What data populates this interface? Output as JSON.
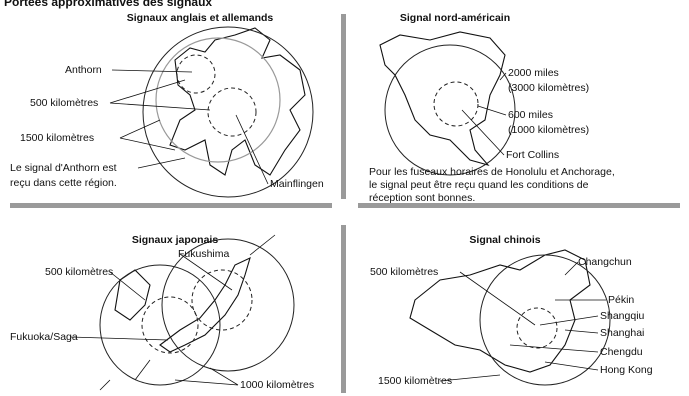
{
  "header": {
    "title": "Portées approximatives des signaux"
  },
  "panels": [
    {
      "title": "Signaux anglais et allemands",
      "labels": [
        "Anthorn",
        "500 kilomètres",
        "1500 kilomètres",
        "Le signal d'Anthorn est",
        "reçu dans cette région.",
        "Mainflingen"
      ]
    },
    {
      "title": "Signal nord-américain",
      "labels": [
        "2000 miles",
        "(3000 kilomètres)",
        "600 miles",
        "(1000 kilomètres)",
        "Fort Collins"
      ],
      "note": [
        "Pour les fuseaux horaires de Honolulu et Anchorage,",
        "le signal peut être reçu quand les conditions de",
        "réception sont bonnes."
      ]
    },
    {
      "title": "Signaux japonais",
      "labels": [
        "Fukushima",
        "500 kilomètres",
        "Fukuoka/Saga",
        "1000 kilomètres"
      ]
    },
    {
      "title": "Signal chinois",
      "labels": [
        "Changchun",
        "500 kilomètres",
        "Pékin",
        "Shangqiu",
        "Shanghai",
        "Chengdu",
        "Hong Kong",
        "1500 kilomètres"
      ]
    }
  ]
}
